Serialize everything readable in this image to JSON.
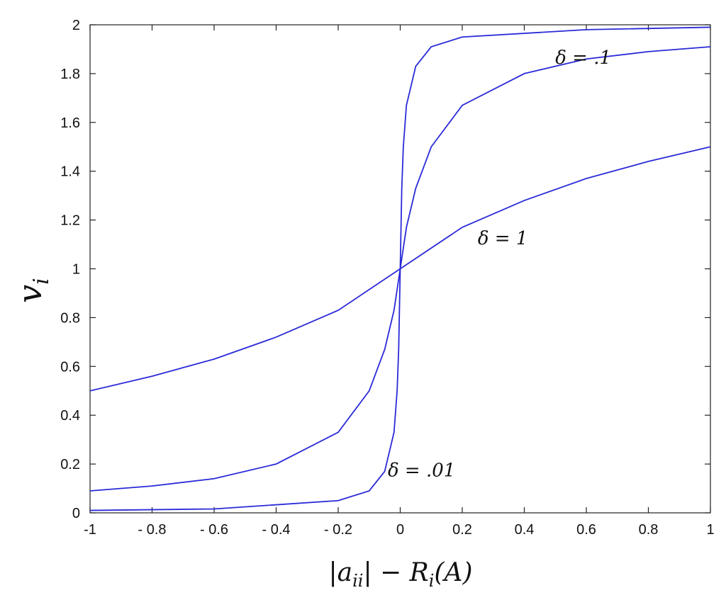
{
  "chart_data": {
    "type": "line",
    "xlabel": "|a_ii| − R_i(A)",
    "ylabel": "v_i",
    "xlim": [
      -1,
      1
    ],
    "ylim": [
      0,
      2
    ],
    "grid": false,
    "x_ticks": [
      "-1",
      "- 0.8",
      "- 0.6",
      "- 0.4",
      "- 0.2",
      "0",
      "0.2",
      "0.4",
      "0.6",
      "0.8",
      "1"
    ],
    "y_ticks": [
      "0",
      "0.2",
      "0.4",
      "0.6",
      "0.8",
      "1",
      "1.2",
      "1.4",
      "1.6",
      "1.8",
      "2"
    ],
    "line_color": "#2a2ad8",
    "annotations": [
      {
        "text": "δ = .1",
        "x": 0.5,
        "y": 1.84
      },
      {
        "text": "δ = 1",
        "x": 0.25,
        "y": 1.1
      },
      {
        "text": "δ = .01",
        "x": -0.04,
        "y": 0.15
      }
    ],
    "series": [
      {
        "label_ref": "δ = 1",
        "x": [
          -1,
          -0.8,
          -0.6,
          -0.4,
          -0.2,
          0,
          0.2,
          0.4,
          0.6,
          0.8,
          1
        ],
        "y": [
          0.5,
          0.56,
          0.63,
          0.72,
          0.83,
          1.0,
          1.17,
          1.28,
          1.37,
          1.44,
          1.5
        ]
      },
      {
        "label_ref": "δ = .1",
        "x": [
          -1,
          -0.8,
          -0.6,
          -0.4,
          -0.2,
          -0.1,
          -0.05,
          -0.02,
          0,
          0.02,
          0.05,
          0.1,
          0.2,
          0.4,
          0.6,
          0.8,
          1
        ],
        "y": [
          0.09,
          0.11,
          0.14,
          0.2,
          0.33,
          0.5,
          0.67,
          0.83,
          1.0,
          1.17,
          1.33,
          1.5,
          1.67,
          1.8,
          1.86,
          1.89,
          1.91
        ]
      },
      {
        "label_ref": "δ = .01",
        "x": [
          -1,
          -0.6,
          -0.2,
          -0.1,
          -0.05,
          -0.02,
          -0.01,
          -0.005,
          0,
          0.005,
          0.01,
          0.02,
          0.05,
          0.1,
          0.2,
          0.6,
          1
        ],
        "y": [
          0.01,
          0.016,
          0.05,
          0.09,
          0.17,
          0.33,
          0.5,
          0.67,
          1.0,
          1.33,
          1.5,
          1.67,
          1.83,
          1.91,
          1.95,
          1.98,
          1.99
        ]
      }
    ]
  }
}
